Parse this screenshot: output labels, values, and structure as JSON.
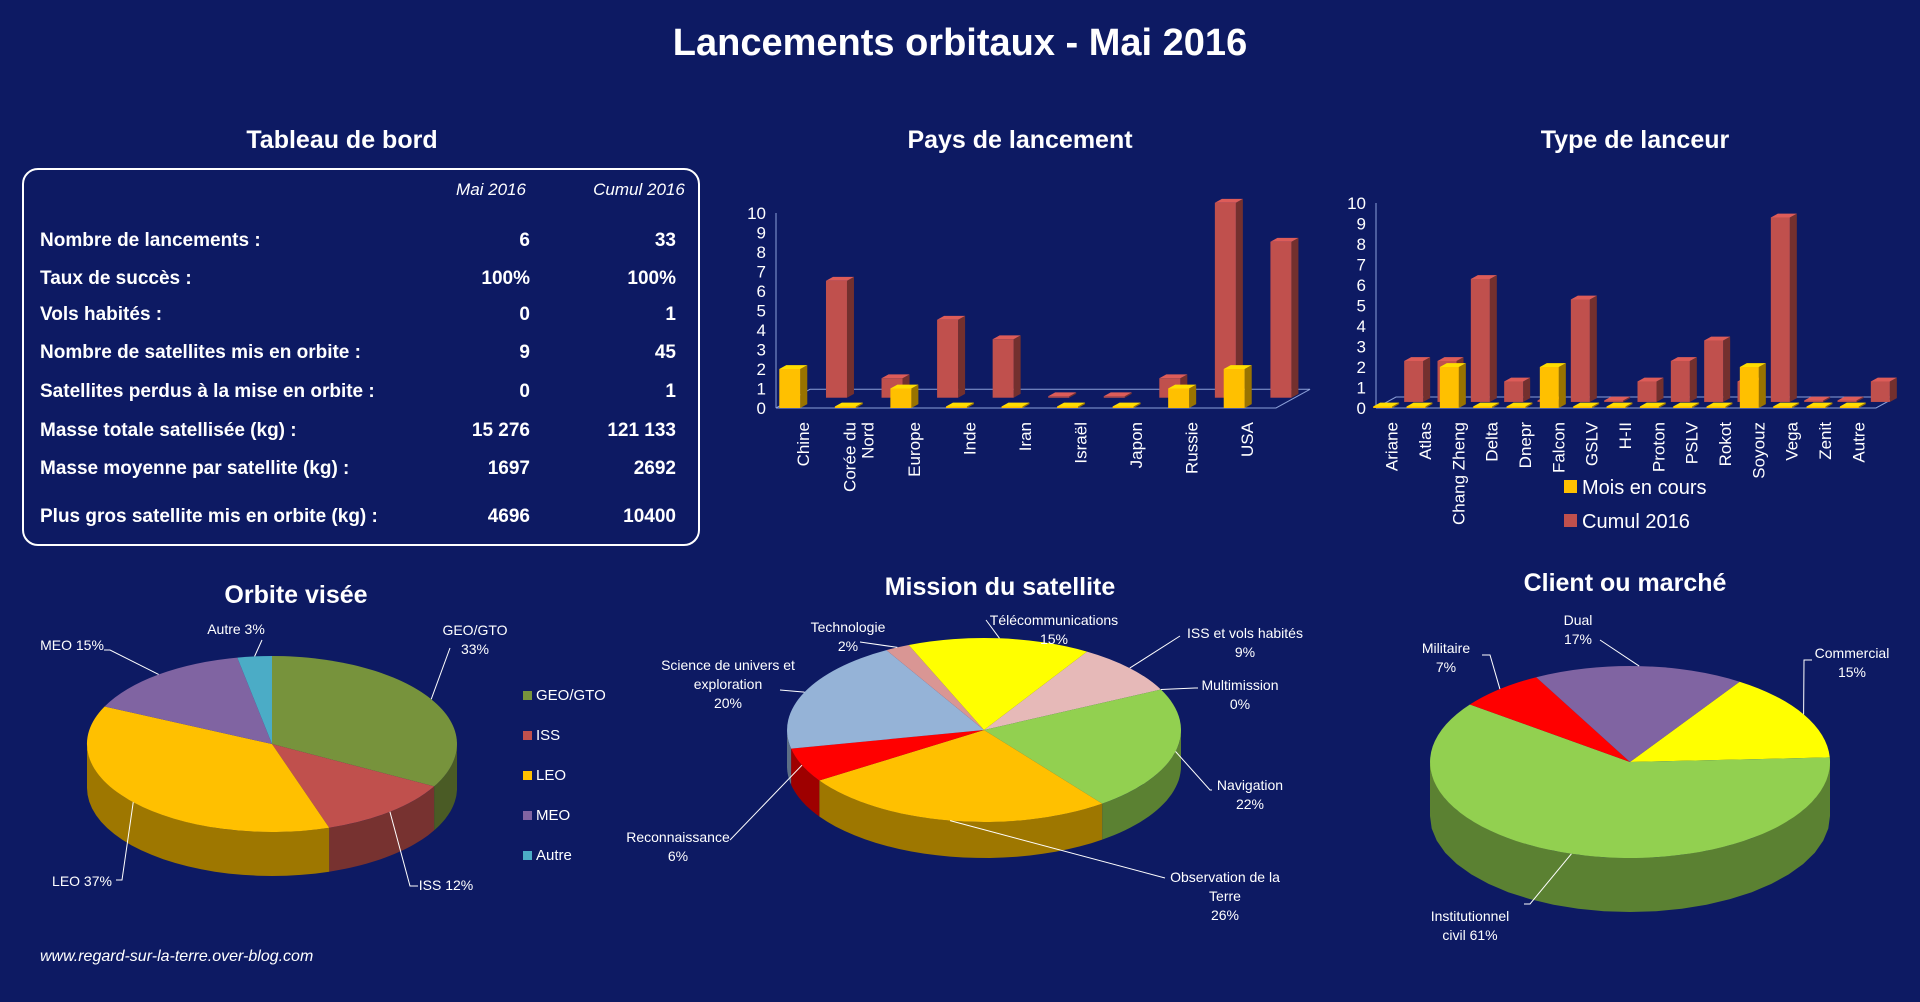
{
  "title": "Lancements orbitaux - Mai 2016",
  "footer": "www.regard-sur-la-terre.over-blog.com",
  "dashboard": {
    "title": "Tableau de bord",
    "col1": "Mai 2016",
    "col2": "Cumul 2016",
    "rows": [
      {
        "label": "Nombre de lancements :",
        "v1": "6",
        "v2": "33"
      },
      {
        "label": "Taux de succès :",
        "v1": "100%",
        "v2": "100%"
      },
      {
        "label": "Vols habités :",
        "v1": "0",
        "v2": "1"
      },
      {
        "label": "Nombre de satellites mis en orbite :",
        "v1": "9",
        "v2": "45"
      },
      {
        "label": "Satellites perdus à la mise en orbite :",
        "v1": "0",
        "v2": "1"
      },
      {
        "label": "Masse totale satellisée (kg) :",
        "v1": "15 276",
        "v2": "121 133"
      },
      {
        "label": "Masse moyenne par satellite (kg) :",
        "v1": "1697",
        "v2": "2692"
      },
      {
        "label": "Plus gros satellite mis en orbite (kg) :",
        "v1": "4696",
        "v2": "10400"
      }
    ]
  },
  "chart_data": [
    {
      "type": "bar",
      "title": "Pays de lancement",
      "categories": [
        "Chine",
        "Corée du Nord",
        "Europe",
        "Inde",
        "Iran",
        "Israël",
        "Japon",
        "Russie",
        "USA"
      ],
      "series": [
        {
          "name": "Mois en cours",
          "color": "#ffc000",
          "values": [
            2,
            0,
            1,
            0,
            0,
            0,
            0,
            1,
            2
          ]
        },
        {
          "name": "Cumul 2016",
          "color": "#c0504d",
          "values": [
            6,
            1,
            4,
            3,
            0,
            0,
            1,
            10,
            8
          ]
        }
      ],
      "ylim": [
        0,
        10
      ],
      "yticks": [
        "0",
        "1",
        "2",
        "3",
        "4",
        "5",
        "6",
        "7",
        "8",
        "9",
        "10"
      ]
    },
    {
      "type": "bar",
      "title": "Type de lanceur",
      "categories": [
        "Ariane",
        "Atlas",
        "Chang Zheng",
        "Delta",
        "Dnepr",
        "Falcon",
        "GSLV",
        "H-II",
        "Proton",
        "PSLV",
        "Rokot",
        "Soyouz",
        "Vega",
        "Zenit",
        "Autre"
      ],
      "series": [
        {
          "name": "Mois en cours",
          "color": "#ffc000",
          "values": [
            0,
            0,
            2,
            0,
            0,
            2,
            0,
            0,
            0,
            0,
            0,
            2,
            0,
            0,
            0
          ]
        },
        {
          "name": "Cumul 2016",
          "color": "#c0504d",
          "values": [
            2,
            2,
            6,
            1,
            0,
            5,
            0,
            1,
            2,
            3,
            1,
            9,
            0,
            0,
            1
          ]
        }
      ],
      "ylim": [
        0,
        10
      ],
      "yticks": [
        "0",
        "1",
        "2",
        "3",
        "4",
        "5",
        "6",
        "7",
        "8",
        "9",
        "10"
      ],
      "legend": [
        "Mois en cours",
        "Cumul 2016"
      ]
    },
    {
      "type": "pie",
      "title": "Orbite visée",
      "slices": [
        {
          "name": "GEO/GTO",
          "value": 33,
          "label": [
            "GEO/GTO",
            "33%"
          ],
          "color": "#77933c"
        },
        {
          "name": "ISS",
          "value": 12,
          "label": [
            "ISS 12%"
          ],
          "color": "#c0504d"
        },
        {
          "name": "LEO",
          "value": 37,
          "label": [
            "LEO 37%"
          ],
          "color": "#ffc000"
        },
        {
          "name": "MEO",
          "value": 15,
          "label": [
            "MEO 15%"
          ],
          "color": "#8064a2"
        },
        {
          "name": "Autre",
          "value": 3,
          "label": [
            "Autre 3%"
          ],
          "color": "#4bacc6"
        }
      ],
      "legend": [
        "GEO/GTO",
        "ISS",
        "LEO",
        "MEO",
        "Autre"
      ]
    },
    {
      "type": "pie",
      "title": "Mission du satellite",
      "slices": [
        {
          "name": "ISS et vols habités",
          "value": 9,
          "label": [
            "ISS et vols habités",
            "9%"
          ],
          "color": "#e6b9b8"
        },
        {
          "name": "Multimission",
          "value": 0,
          "label": [
            "Multimission",
            "0%"
          ],
          "color": "#4f81bd"
        },
        {
          "name": "Navigation",
          "value": 22,
          "label": [
            "Navigation",
            "22%"
          ],
          "color": "#92d050"
        },
        {
          "name": "Observation de la Terre",
          "value": 26,
          "label": [
            "Observation de la",
            "Terre",
            "26%"
          ],
          "color": "#ffc000"
        },
        {
          "name": "Reconnaissance",
          "value": 6,
          "label": [
            "Reconnaissance",
            "6%"
          ],
          "color": "#ff0000"
        },
        {
          "name": "Science de univers et exploration",
          "value": 20,
          "label": [
            "Science de univers et",
            "exploration",
            "20%"
          ],
          "color": "#95b3d7"
        },
        {
          "name": "Technologie",
          "value": 2,
          "label": [
            "Technologie",
            "2%"
          ],
          "color": "#d99694"
        },
        {
          "name": "Télécommunications",
          "value": 15,
          "label": [
            "Télécommunications",
            "15%"
          ],
          "color": "#ffff00"
        }
      ]
    },
    {
      "type": "pie",
      "title": "Client ou marché",
      "slices": [
        {
          "name": "Commercial",
          "value": 15,
          "label": [
            "Commercial",
            "15%"
          ],
          "color": "#ffff00"
        },
        {
          "name": "Institutionnel civil",
          "value": 61,
          "label": [
            "Institutionnel",
            "civil 61%"
          ],
          "color": "#92d050"
        },
        {
          "name": "Militaire",
          "value": 7,
          "label": [
            "Militaire",
            "7%"
          ],
          "color": "#ff0000"
        },
        {
          "name": "Dual",
          "value": 17,
          "label": [
            "Dual",
            "17%"
          ],
          "color": "#8064a2"
        }
      ]
    }
  ]
}
